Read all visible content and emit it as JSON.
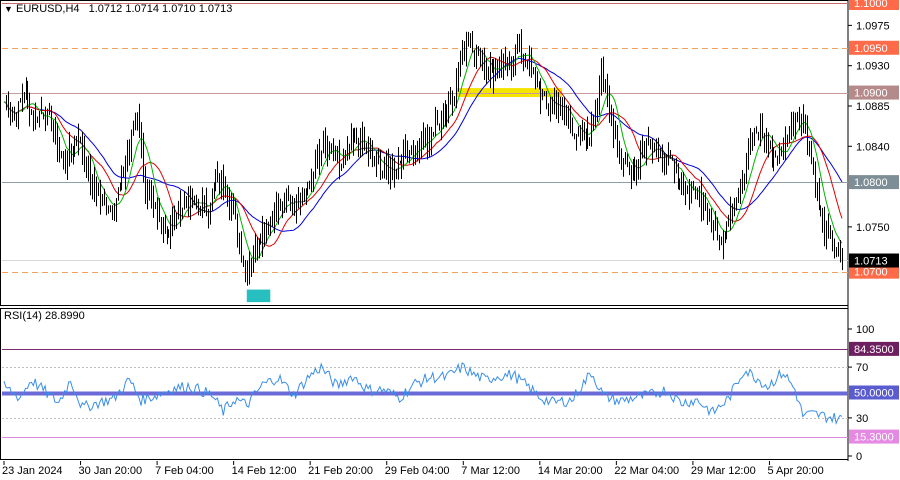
{
  "price_panel": {
    "title_symbol": "EURUSD,H4",
    "ohlc": "1.0712 1.0714 1.0710 1.0713",
    "current_price": "1.0713",
    "y_min": 1.0665,
    "y_max": 1.1,
    "ticks": [
      "1.0975",
      "1.0930",
      "1.0885",
      "1.0840",
      "1.0750"
    ],
    "levels": [
      {
        "value": 1.1,
        "label": "1.1000",
        "line_color": "#c86b6b",
        "style": "solid",
        "box_color": "#ff6a48"
      },
      {
        "value": 1.095,
        "label": "1.0950",
        "line_color": "#f2a05a",
        "style": "dashed",
        "box_color": "#ff6a48"
      },
      {
        "value": 1.09,
        "label": "1.0900",
        "line_color": "#c99a9a",
        "style": "solid",
        "box_color": "#b58a8a"
      },
      {
        "value": 1.08,
        "label": "1.0800",
        "line_color": "#8f9fa8",
        "style": "solid",
        "box_color": "#7e8e96"
      },
      {
        "value": 1.07,
        "label": "1.0700",
        "line_color": "#f2a05a",
        "style": "dashed",
        "box_color": "#ff6a48"
      }
    ]
  },
  "rsi_panel": {
    "title": "RSI(14) 28.8990",
    "y_min": 0,
    "y_max": 100,
    "ticks": [
      "100",
      "70",
      "30",
      "0"
    ],
    "levels": [
      {
        "value": 84.35,
        "label": "84.3500",
        "line_color": "#7b2c6e",
        "box_color": "#6e1f60"
      },
      {
        "value": 50.0,
        "label": "50.0000",
        "line_color": "#6a6bd6",
        "box_color": "#5b5bd0"
      },
      {
        "value": 15.3,
        "label": "15.3000",
        "line_color": "#e08adf",
        "box_color": "#e58ae3"
      }
    ]
  },
  "x_axis_labels": [
    "23 Jan 2024",
    "30 Jan 20:00",
    "7 Feb 04:00",
    "14 Feb 12:00",
    "21 Feb 20:00",
    "29 Feb 04:00",
    "7 Mar 12:00",
    "14 Mar 20:00",
    "22 Mar 04:00",
    "29 Mar 12:00",
    "5 Apr 20:00"
  ],
  "colors": {
    "ma_fast": "#00b400",
    "ma_mid": "#e00000",
    "ma_slow": "#0000dc",
    "candle": "#000000",
    "rsi_line": "#3a8ee8",
    "highlight_yellow": "#f5e400",
    "highlight_cyan": "#27bfbf"
  },
  "chart_data": {
    "type": "candlestick",
    "symbol": "EURUSD",
    "timeframe": "H4",
    "close_anchors": [
      [
        0,
        1.089
      ],
      [
        5,
        1.087
      ],
      [
        10,
        1.09
      ],
      [
        16,
        1.087
      ],
      [
        20,
        1.088
      ],
      [
        25,
        1.086
      ],
      [
        30,
        1.082
      ],
      [
        34,
        1.0835
      ],
      [
        38,
        1.0855
      ],
      [
        44,
        1.08
      ],
      [
        50,
        1.078
      ],
      [
        55,
        1.077
      ],
      [
        60,
        1.08
      ],
      [
        64,
        1.084
      ],
      [
        68,
        1.088
      ],
      [
        72,
        1.079
      ],
      [
        78,
        1.076
      ],
      [
        84,
        1.0745
      ],
      [
        88,
        1.0765
      ],
      [
        93,
        1.078
      ],
      [
        98,
        1.0775
      ],
      [
        103,
        1.077
      ],
      [
        108,
        1.08
      ],
      [
        112,
        1.08
      ],
      [
        116,
        1.077
      ],
      [
        120,
        1.0735
      ],
      [
        123,
        1.07
      ],
      [
        128,
        1.073
      ],
      [
        133,
        1.075
      ],
      [
        138,
        1.0765
      ],
      [
        143,
        1.078
      ],
      [
        148,
        1.0775
      ],
      [
        152,
        1.079
      ],
      [
        157,
        1.08
      ],
      [
        162,
        1.084
      ],
      [
        167,
        1.083
      ],
      [
        172,
        1.082
      ],
      [
        177,
        1.084
      ],
      [
        182,
        1.085
      ],
      [
        186,
        1.083
      ],
      [
        190,
        1.082
      ],
      [
        196,
        1.081
      ],
      [
        200,
        1.082
      ],
      [
        205,
        1.083
      ],
      [
        210,
        1.084
      ],
      [
        215,
        1.0845
      ],
      [
        220,
        1.086
      ],
      [
        225,
        1.088
      ],
      [
        230,
        1.09
      ],
      [
        234,
        1.095
      ],
      [
        238,
        1.096
      ],
      [
        242,
        1.094
      ],
      [
        246,
        1.093
      ],
      [
        250,
        1.092
      ],
      [
        254,
        1.093
      ],
      [
        258,
        1.0935
      ],
      [
        262,
        1.095
      ],
      [
        266,
        1.094
      ],
      [
        270,
        1.092
      ],
      [
        274,
        1.09
      ],
      [
        278,
        1.088
      ],
      [
        282,
        1.089
      ],
      [
        286,
        1.088
      ],
      [
        290,
        1.086
      ],
      [
        294,
        1.085
      ],
      [
        298,
        1.085
      ],
      [
        302,
        1.088
      ],
      [
        305,
        1.093
      ],
      [
        309,
        1.088
      ],
      [
        313,
        1.084
      ],
      [
        317,
        1.082
      ],
      [
        321,
        1.081
      ],
      [
        325,
        1.083
      ],
      [
        329,
        1.085
      ],
      [
        333,
        1.083
      ],
      [
        337,
        1.082
      ],
      [
        341,
        1.082
      ],
      [
        345,
        1.08
      ],
      [
        349,
        1.079
      ],
      [
        353,
        1.079
      ],
      [
        357,
        1.078
      ],
      [
        361,
        1.076
      ],
      [
        365,
        1.073
      ],
      [
        369,
        1.076
      ],
      [
        373,
        1.078
      ],
      [
        377,
        1.08
      ],
      [
        381,
        1.084
      ],
      [
        385,
        1.086
      ],
      [
        389,
        1.085
      ],
      [
        393,
        1.083
      ],
      [
        397,
        1.083
      ],
      [
        401,
        1.086
      ],
      [
        405,
        1.088
      ],
      [
        409,
        1.086
      ],
      [
        413,
        1.081
      ],
      [
        417,
        1.076
      ],
      [
        421,
        1.074
      ],
      [
        425,
        1.0725
      ],
      [
        428,
        1.0713
      ]
    ],
    "rsi_anchors": [
      [
        0,
        55
      ],
      [
        8,
        46
      ],
      [
        14,
        60
      ],
      [
        20,
        52
      ],
      [
        28,
        42
      ],
      [
        34,
        60
      ],
      [
        40,
        38
      ],
      [
        48,
        42
      ],
      [
        56,
        45
      ],
      [
        64,
        60
      ],
      [
        70,
        44
      ],
      [
        78,
        48
      ],
      [
        86,
        53
      ],
      [
        94,
        55
      ],
      [
        100,
        52
      ],
      [
        106,
        48
      ],
      [
        112,
        35
      ],
      [
        118,
        45
      ],
      [
        124,
        40
      ],
      [
        132,
        56
      ],
      [
        140,
        62
      ],
      [
        148,
        48
      ],
      [
        156,
        63
      ],
      [
        162,
        70
      ],
      [
        170,
        55
      ],
      [
        178,
        63
      ],
      [
        186,
        52
      ],
      [
        194,
        52
      ],
      [
        202,
        46
      ],
      [
        210,
        57
      ],
      [
        218,
        62
      ],
      [
        226,
        62
      ],
      [
        234,
        70
      ],
      [
        240,
        64
      ],
      [
        246,
        60
      ],
      [
        252,
        63
      ],
      [
        260,
        64
      ],
      [
        268,
        54
      ],
      [
        274,
        46
      ],
      [
        280,
        42
      ],
      [
        290,
        44
      ],
      [
        300,
        66
      ],
      [
        306,
        48
      ],
      [
        314,
        43
      ],
      [
        322,
        46
      ],
      [
        330,
        48
      ],
      [
        338,
        52
      ],
      [
        346,
        42
      ],
      [
        354,
        44
      ],
      [
        362,
        34
      ],
      [
        370,
        45
      ],
      [
        378,
        68
      ],
      [
        384,
        62
      ],
      [
        390,
        55
      ],
      [
        398,
        66
      ],
      [
        404,
        52
      ],
      [
        408,
        32
      ],
      [
        414,
        33
      ],
      [
        420,
        31
      ],
      [
        428,
        29
      ]
    ]
  }
}
